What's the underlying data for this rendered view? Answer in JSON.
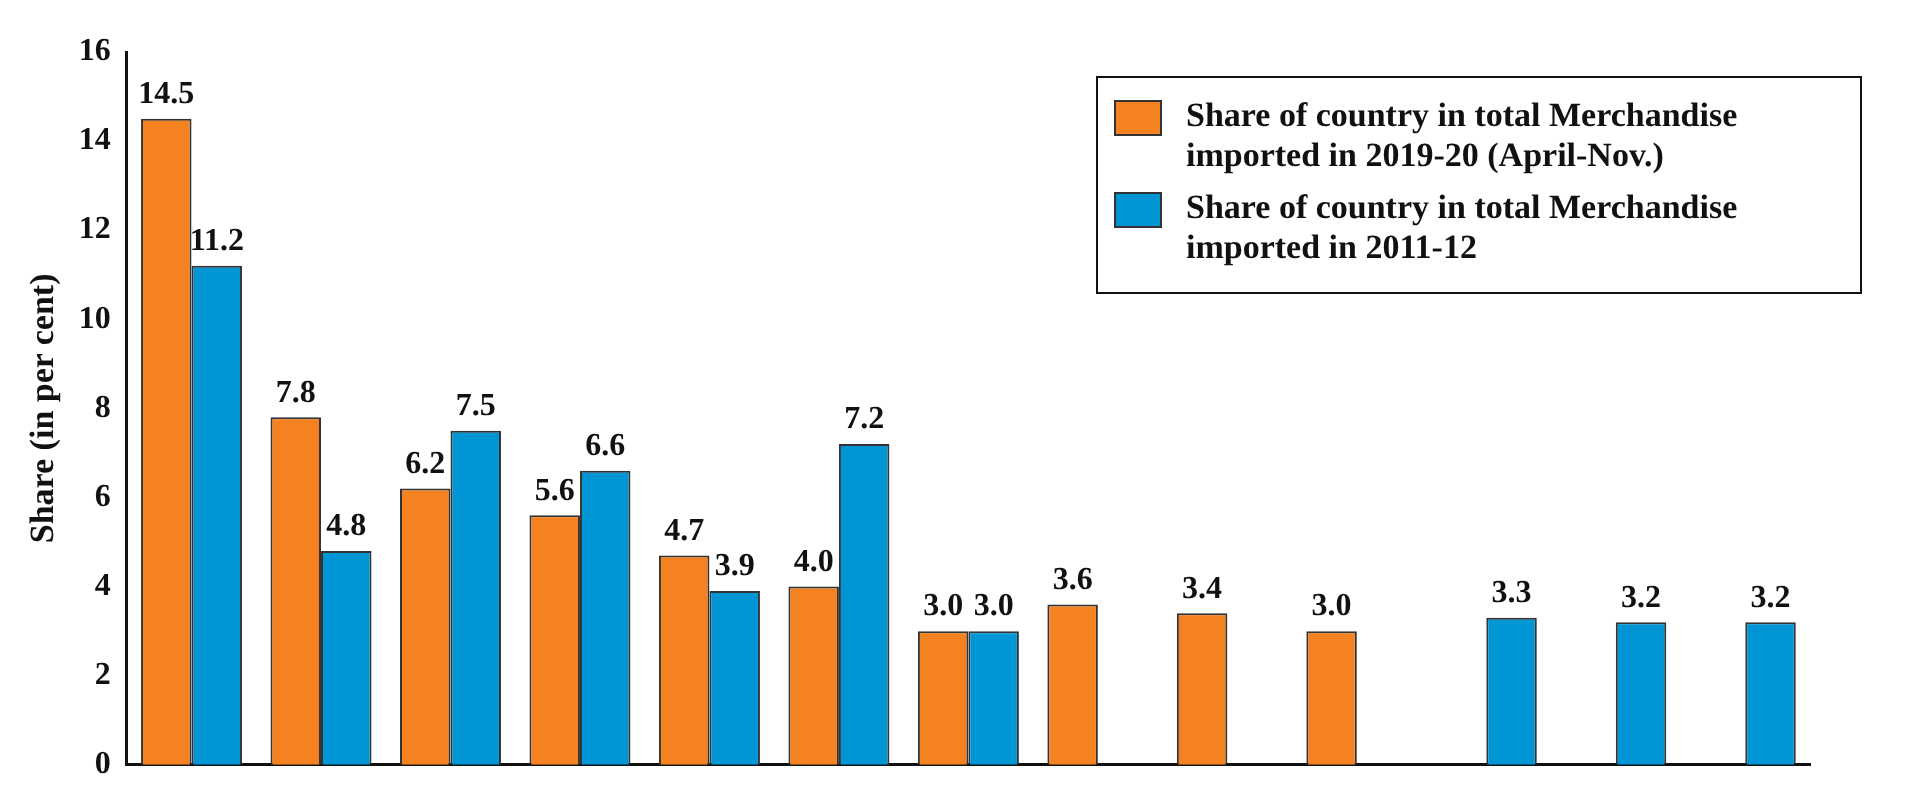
{
  "chart_data": {
    "type": "bar",
    "ylabel": "Share (in per cent)",
    "categories": [
      null,
      null,
      null,
      null,
      null,
      null,
      null,
      null,
      null,
      null,
      null,
      null,
      null
    ],
    "series": [
      {
        "name": "Share of country in total Merchandise imported in 2019-20 (April-Nov.)",
        "color": "#f58220",
        "values": [
          14.5,
          7.8,
          6.2,
          5.6,
          4.7,
          4.0,
          3.0,
          3.6,
          3.4,
          3.0,
          null,
          null,
          null
        ],
        "value_labels": [
          "14.5",
          "7.8",
          "6.2",
          "5.6",
          "4.7",
          "4.0",
          "3.0",
          "3.6",
          "3.4",
          "3.0",
          null,
          null,
          null
        ]
      },
      {
        "name": "Share of country in total Merchandise imported in 2011-12",
        "color": "#0096d6",
        "values": [
          11.2,
          4.8,
          7.5,
          6.6,
          3.9,
          7.2,
          3.0,
          null,
          null,
          null,
          3.3,
          3.2,
          3.2
        ],
        "value_labels": [
          "11.2",
          "4.8",
          "7.5",
          "6.6",
          "3.9",
          "7.2",
          "3.0",
          null,
          null,
          null,
          "3.3",
          "3.2",
          "3.2"
        ]
      }
    ],
    "ylim": [
      0,
      16
    ],
    "yticks": [
      0,
      2,
      4,
      6,
      8,
      10,
      12,
      14,
      16
    ],
    "grid": false,
    "legend": "top right",
    "tick_labels": "y"
  }
}
